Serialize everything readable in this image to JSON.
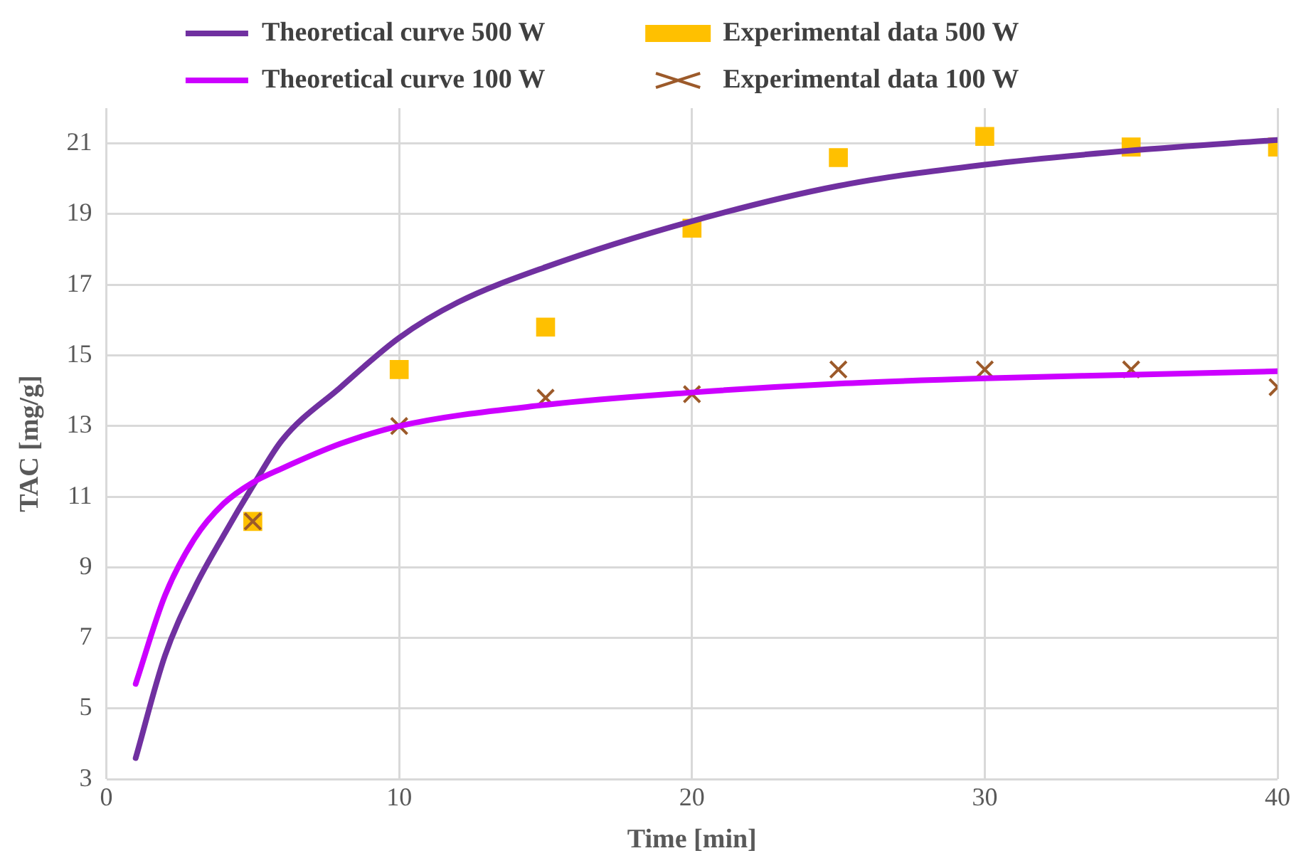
{
  "chart_data": {
    "type": "line",
    "xlabel": "Time [min]",
    "ylabel": "TAC [mg/g]",
    "xlim": [
      0,
      40
    ],
    "xticks": [
      0,
      10,
      20,
      30,
      40
    ],
    "ylim": [
      3,
      22
    ],
    "yticks": [
      3,
      5,
      7,
      9,
      11,
      13,
      15,
      17,
      19,
      21
    ],
    "grid": true,
    "legend": "top",
    "series": [
      {
        "name": "Theoretical curve 500 W",
        "type": "line",
        "marker": "none",
        "line_style": "solid",
        "color": "#7030a0",
        "x": [
          1,
          2,
          3,
          4,
          5,
          6,
          8,
          10,
          12,
          15,
          20,
          25,
          30,
          35,
          40
        ],
        "values": [
          3.6,
          6.5,
          8.4,
          9.9,
          11.3,
          12.6,
          14.1,
          15.5,
          16.5,
          17.5,
          18.8,
          19.8,
          20.4,
          20.8,
          21.1
        ]
      },
      {
        "name": "Experimental data 500 W",
        "type": "scatter",
        "marker": "square",
        "color": "#ffc000",
        "x": [
          5,
          10,
          15,
          20,
          25,
          30,
          35,
          40
        ],
        "values": [
          10.3,
          14.6,
          15.8,
          18.6,
          20.6,
          21.2,
          20.9,
          20.9
        ]
      },
      {
        "name": "Theoretical curve 100 W",
        "type": "line",
        "marker": "none",
        "line_style": "solid",
        "color": "#cc00ff",
        "x": [
          1,
          2,
          3,
          4,
          5,
          6,
          8,
          10,
          15,
          20,
          25,
          30,
          35,
          40
        ],
        "values": [
          5.7,
          8.2,
          9.8,
          10.8,
          11.4,
          11.8,
          12.5,
          13.0,
          13.6,
          13.95,
          14.2,
          14.35,
          14.45,
          14.55
        ]
      },
      {
        "name": "Experimental data 100 W",
        "type": "scatter",
        "marker": "cross",
        "color": "#9c5a2a",
        "x": [
          5,
          10,
          15,
          20,
          25,
          30,
          35,
          40
        ],
        "values": [
          10.3,
          13.0,
          13.8,
          13.9,
          14.6,
          14.6,
          14.6,
          14.1
        ]
      }
    ]
  }
}
